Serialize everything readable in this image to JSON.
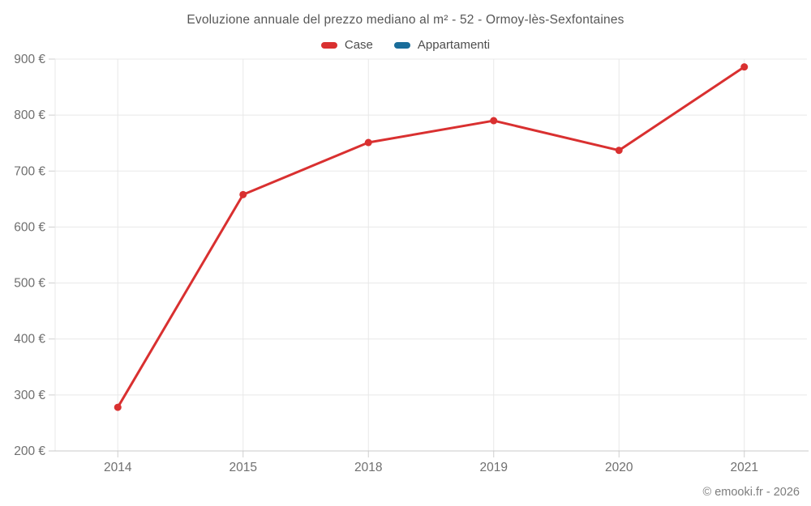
{
  "chart_data": {
    "type": "line",
    "title": "Evoluzione annuale del prezzo mediano al m² - 52 - Ormoy-lès-Sexfontaines",
    "categories": [
      "2014",
      "2015",
      "2018",
      "2019",
      "2020",
      "2021"
    ],
    "series": [
      {
        "name": "Case",
        "color": "#d93030",
        "values": [
          278,
          658,
          751,
          790,
          737,
          886
        ]
      },
      {
        "name": "Appartamenti",
        "color": "#1a6d9a",
        "values": []
      }
    ],
    "xlabel": "",
    "ylabel": "",
    "ylim": [
      200,
      900
    ],
    "y_tick_step": 100,
    "y_tick_suffix": " €",
    "grid": true,
    "legend_position": "top"
  },
  "footer": {
    "text": "© emooki.fr - 2026"
  }
}
